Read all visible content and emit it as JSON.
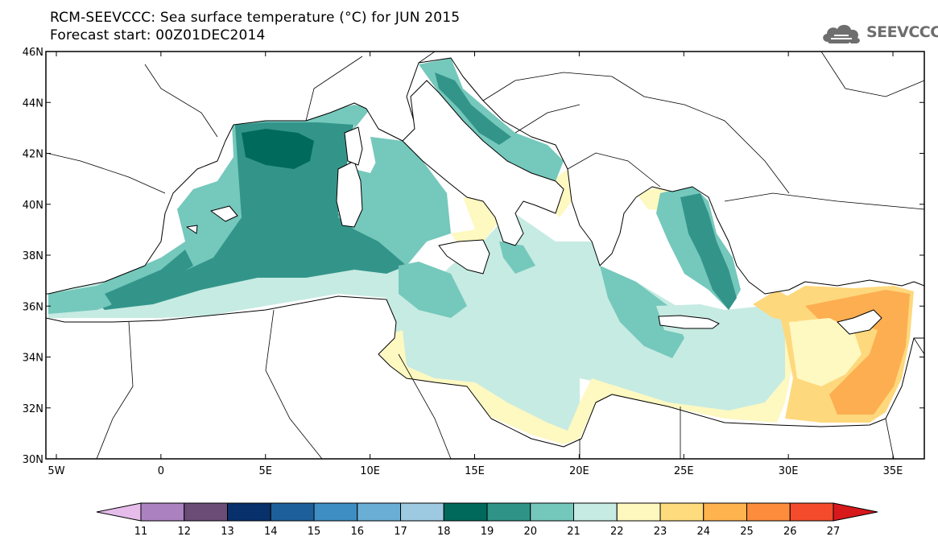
{
  "header": {
    "title_line1": "RCM-SEEVCCC: Sea surface temperature (°C) for JUN 2015",
    "title_line2": "Forecast start: 00Z01DEC2014"
  },
  "logo": {
    "text": "SEEVCCC",
    "icon": "cloud-icon"
  },
  "map": {
    "lat_range": [
      30,
      46
    ],
    "lon_range": [
      -5.5,
      36.5
    ],
    "lat_ticks": [
      "30N",
      "32N",
      "34N",
      "36N",
      "38N",
      "40N",
      "42N",
      "44N",
      "46N"
    ],
    "lon_ticks": [
      "5W",
      "0",
      "5E",
      "10E",
      "15E",
      "20E",
      "25E",
      "30E",
      "35E"
    ],
    "field": "Sea surface temperature (°C)",
    "colors": {
      "sst_19": "#006a5d",
      "sst_20": "#33958a",
      "sst_21": "#75c8bc",
      "sst_22": "#c6ebe2",
      "sst_23": "#fef8c1",
      "sst_24": "#fed87c",
      "sst_25": "#fcae51",
      "land": "#ffffff",
      "coast": "#000000"
    }
  },
  "colorbar": {
    "levels": [
      "11",
      "12",
      "13",
      "14",
      "15",
      "16",
      "17",
      "18",
      "19",
      "20",
      "21",
      "22",
      "23",
      "24",
      "25",
      "26",
      "27"
    ],
    "colors": [
      "#e5bcea",
      "#ab82bf",
      "#6a4c77",
      "#08306b",
      "#1d5f9b",
      "#3e8ec4",
      "#6aaed6",
      "#9ecae1",
      "#00695c",
      "#2f9487",
      "#74c7bb",
      "#c6ebe2",
      "#fef8bf",
      "#fedb7d",
      "#feb34e",
      "#fd8c3c",
      "#f34b2b",
      "#d7191c"
    ]
  }
}
